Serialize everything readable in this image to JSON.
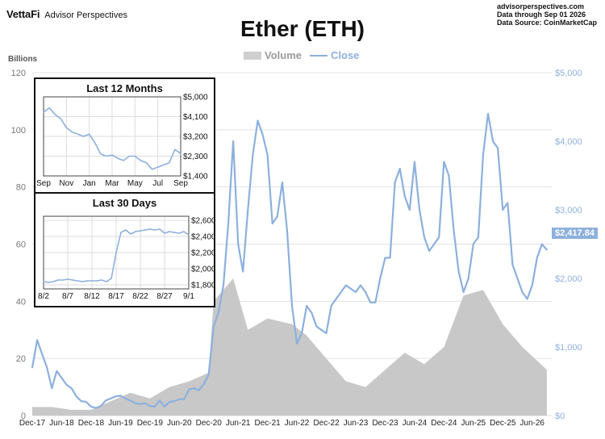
{
  "header": {
    "brand": "VettaFi",
    "brand_sub": "Advisor Perspectives",
    "site": "advisorperspectives.com",
    "data_through": "Data through Sep 01 2026",
    "data_source": "Data Source: CoinMarketCap"
  },
  "colors": {
    "close": "#8db0dd",
    "volume": "#c8c8c8",
    "grid": "#e2e2e2"
  },
  "chart_data": [
    {
      "type": "area",
      "title": "Ether (ETH)",
      "legend": [
        "Volume",
        "Close"
      ],
      "legend_position": "top-center",
      "y_left_label": "Billions",
      "y_left_ticks": [
        "0",
        "20",
        "40",
        "60",
        "80",
        "100",
        "120"
      ],
      "y_left_range": [
        0,
        120
      ],
      "y_right_ticks": [
        "$0",
        "$1,000",
        "$2,000",
        "$3,000",
        "$4,000",
        "$5,000"
      ],
      "y_right_range": [
        0,
        5000
      ],
      "x_ticks": [
        "Dec-17",
        "Jun-18",
        "Dec-18",
        "Jun-19",
        "Dec-19",
        "Jun-20",
        "Dec-20",
        "Jun-21",
        "Dec-21",
        "Jun-22",
        "Dec-22",
        "Jun-23",
        "Dec-23",
        "Jun-24",
        "Dec-24",
        "Jun-25",
        "Dec-25",
        "Jun-26"
      ],
      "last_close_label": "$2,417.84",
      "series": [
        {
          "name": "Close",
          "axis": "right",
          "x": [
            2017.917,
            2018.0,
            2018.083,
            2018.167,
            2018.25,
            2018.333,
            2018.417,
            2018.5,
            2018.583,
            2018.667,
            2018.75,
            2018.833,
            2018.917,
            2019.0,
            2019.083,
            2019.167,
            2019.25,
            2019.333,
            2019.417,
            2019.5,
            2019.583,
            2019.667,
            2019.75,
            2019.833,
            2019.917,
            2020.0,
            2020.083,
            2020.167,
            2020.25,
            2020.333,
            2020.417,
            2020.5,
            2020.583,
            2020.667,
            2020.75,
            2020.833,
            2020.917,
            2021.0,
            2021.083,
            2021.167,
            2021.25,
            2021.333,
            2021.417,
            2021.5,
            2021.583,
            2021.667,
            2021.75,
            2021.833,
            2021.917,
            2022.0,
            2022.083,
            2022.167,
            2022.25,
            2022.333,
            2022.417,
            2022.5,
            2022.583,
            2022.667,
            2022.75,
            2022.833,
            2022.917,
            2023.0,
            2023.083,
            2023.167,
            2023.25,
            2023.333,
            2023.417,
            2023.5,
            2023.583,
            2023.667,
            2023.75,
            2023.833,
            2023.917,
            2024.0,
            2024.083,
            2024.167,
            2024.25,
            2024.333,
            2024.417,
            2024.5,
            2024.583,
            2024.667,
            2024.75,
            2024.833,
            2024.917,
            2025.0,
            2025.083,
            2025.167,
            2025.25,
            2025.333,
            2025.417,
            2025.5,
            2025.583,
            2025.667,
            2025.75,
            2025.833,
            2025.917,
            2026.0,
            2026.083,
            2026.167,
            2026.25,
            2026.333,
            2026.417,
            2026.5,
            2026.583,
            2026.667
          ],
          "values": [
            700,
            1100,
            900,
            700,
            400,
            650,
            550,
            450,
            400,
            280,
            210,
            200,
            130,
            110,
            140,
            220,
            250,
            280,
            290,
            250,
            220,
            180,
            170,
            180,
            140,
            130,
            220,
            130,
            200,
            210,
            240,
            240,
            380,
            400,
            370,
            460,
            600,
            1300,
            1500,
            1900,
            2800,
            4000,
            2500,
            2100,
            3000,
            3800,
            4300,
            4100,
            3800,
            2800,
            2900,
            3400,
            2700,
            1600,
            1050,
            1200,
            1600,
            1500,
            1300,
            1250,
            1200,
            1600,
            1700,
            1800,
            1900,
            1850,
            1800,
            1900,
            1800,
            1650,
            1650,
            2000,
            2300,
            2300,
            3400,
            3600,
            3200,
            3000,
            3700,
            3000,
            2600,
            2400,
            2500,
            2600,
            3700,
            3500,
            2700,
            2100,
            1800,
            2000,
            2500,
            2600,
            3800,
            4400,
            4000,
            3900,
            3000,
            3100,
            2200,
            2000,
            1800,
            1700,
            1900,
            2300,
            2500,
            2418
          ]
        },
        {
          "name": "Volume",
          "axis": "left",
          "x": [
            2017.917,
            2018.25,
            2018.583,
            2018.917,
            2019.25,
            2019.583,
            2019.917,
            2020.25,
            2020.583,
            2020.917,
            2021.0,
            2021.333,
            2021.583,
            2021.917,
            2022.333,
            2022.583,
            2022.917,
            2023.25,
            2023.583,
            2023.917,
            2024.25,
            2024.583,
            2024.917,
            2025.25,
            2025.583,
            2025.917,
            2026.25,
            2026.667
          ],
          "values": [
            3,
            3,
            2,
            2,
            5,
            8,
            6,
            10,
            12,
            15,
            40,
            48,
            30,
            34,
            32,
            28,
            20,
            12,
            10,
            16,
            22,
            18,
            24,
            42,
            44,
            32,
            24,
            16
          ]
        }
      ]
    },
    {
      "type": "line",
      "title": "Last 12 Months",
      "y_ticks": [
        "$1,400",
        "$2,300",
        "$3,200",
        "$4,100",
        "$5,000"
      ],
      "y_range": [
        1400,
        5000
      ],
      "x_ticks": [
        "Sep",
        "Nov",
        "Jan",
        "Mar",
        "May",
        "Jul",
        "Sep"
      ],
      "series": [
        {
          "name": "Close",
          "x": [
            0,
            0.5,
            1,
            1.5,
            2,
            2.5,
            3,
            3.5,
            4,
            4.5,
            5,
            5.5,
            6,
            6.5,
            7,
            7.5,
            8,
            8.5,
            9,
            9.5,
            10,
            10.5,
            11,
            11.5,
            12
          ],
          "values": [
            4300,
            4500,
            4200,
            4000,
            3600,
            3400,
            3300,
            3200,
            3300,
            2900,
            2400,
            2300,
            2350,
            2200,
            2100,
            2300,
            2300,
            2100,
            2000,
            1700,
            1800,
            1900,
            2000,
            2600,
            2420
          ]
        }
      ]
    },
    {
      "type": "line",
      "title": "Last 30 Days",
      "y_ticks": [
        "$1,800",
        "$2,000",
        "$2,200",
        "$2,400",
        "$2,600"
      ],
      "y_range": [
        1750,
        2650
      ],
      "x_ticks": [
        "8/2",
        "8/7",
        "8/12",
        "8/17",
        "8/22",
        "8/27",
        "9/1"
      ],
      "series": [
        {
          "name": "Close",
          "x": [
            2,
            3,
            4,
            5,
            6,
            7,
            8,
            9,
            10,
            11,
            12,
            13,
            14,
            15,
            16,
            17,
            18,
            19,
            20,
            21,
            22,
            23,
            24,
            25,
            26,
            27,
            28,
            29,
            30,
            31,
            32
          ],
          "values": [
            1840,
            1830,
            1840,
            1860,
            1860,
            1870,
            1860,
            1850,
            1840,
            1850,
            1850,
            1850,
            1860,
            1840,
            1880,
            2200,
            2450,
            2480,
            2430,
            2460,
            2470,
            2480,
            2490,
            2480,
            2490,
            2440,
            2460,
            2450,
            2440,
            2460,
            2418
          ]
        }
      ]
    }
  ]
}
